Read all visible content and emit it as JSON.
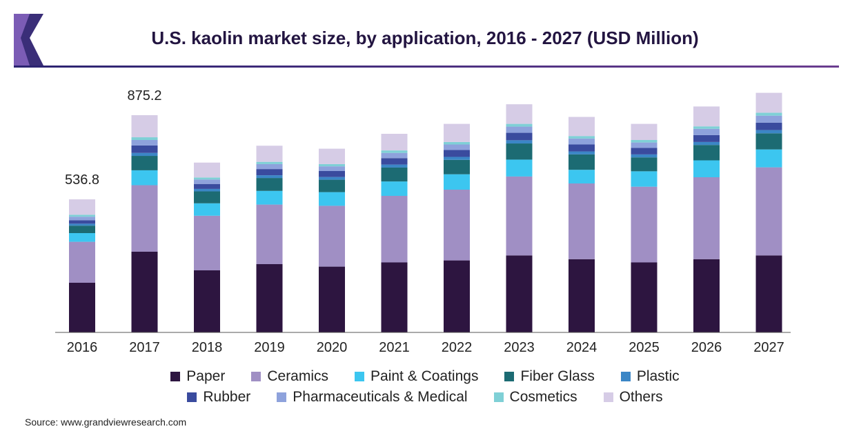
{
  "title": "U.S. kaolin market size, by application, 2016 - 2027 (USD Million)",
  "source": "Source: www.grandviewresearch.com",
  "colors": {
    "Paper": "#2d1540",
    "Ceramics": "#a08fc4",
    "Paint & Coatings": "#3cc6f0",
    "Fiber Glass": "#1c6b73",
    "Plastic": "#3b86c6",
    "Rubber": "#3a4b9e",
    "Pharmaceuticals & Medical": "#8ea2dc",
    "Cosmetics": "#7fd0d6",
    "Others": "#d6cce6"
  },
  "chart_data": {
    "type": "bar",
    "stacked": true,
    "title": "U.S. kaolin market size, by application, 2016 - 2027 (USD Million)",
    "xlabel": "",
    "ylabel": "",
    "ylim": [
      0,
      1000
    ],
    "grid": false,
    "legend": "bottom",
    "categories": [
      "2016",
      "2017",
      "2018",
      "2019",
      "2020",
      "2021",
      "2022",
      "2023",
      "2024",
      "2025",
      "2026",
      "2027"
    ],
    "series": [
      {
        "name": "Paper",
        "values": [
          200,
          325,
          250,
          275,
          265,
          282,
          290,
          310,
          295,
          282,
          295,
          310
        ]
      },
      {
        "name": "Ceramics",
        "values": [
          165,
          268,
          220,
          240,
          245,
          268,
          285,
          318,
          305,
          305,
          330,
          355
        ]
      },
      {
        "name": "Paint & Coatings",
        "values": [
          35,
          60,
          50,
          55,
          55,
          58,
          62,
          68,
          55,
          62,
          68,
          72
        ]
      },
      {
        "name": "Fiber Glass",
        "values": [
          30,
          58,
          48,
          52,
          50,
          56,
          58,
          65,
          62,
          56,
          62,
          65
        ]
      },
      {
        "name": "Plastic",
        "values": [
          8,
          12,
          10,
          11,
          11,
          12,
          12,
          13,
          12,
          12,
          12,
          13
        ]
      },
      {
        "name": "Rubber",
        "values": [
          14,
          30,
          20,
          25,
          24,
          26,
          28,
          30,
          28,
          26,
          28,
          30
        ]
      },
      {
        "name": "Pharmaceuticals & Medical",
        "values": [
          14,
          22,
          18,
          20,
          19,
          21,
          22,
          25,
          24,
          22,
          25,
          28
        ]
      },
      {
        "name": "Cosmetics",
        "values": [
          8,
          11,
          8,
          9,
          9,
          10,
          10,
          11,
          10,
          10,
          10,
          12
        ]
      },
      {
        "name": "Others",
        "values": [
          62,
          89,
          60,
          65,
          62,
          67,
          73,
          79,
          77,
          65,
          80,
          80
        ]
      }
    ],
    "annotations": [
      {
        "category": "2016",
        "label": "536.8"
      },
      {
        "category": "2017",
        "label": "875.2"
      }
    ]
  }
}
